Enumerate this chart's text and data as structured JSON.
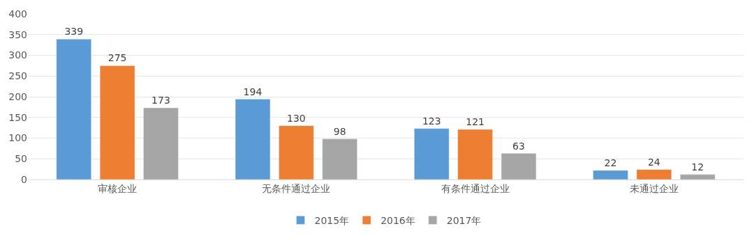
{
  "chart_data": {
    "type": "bar",
    "categories": [
      "审核企业",
      "无条件通过企业",
      "有条件通过企业",
      "未通过企业"
    ],
    "series": [
      {
        "name": "2015年",
        "color": "#5b9bd5",
        "values": [
          339,
          194,
          123,
          22
        ]
      },
      {
        "name": "2016年",
        "color": "#ed7d31",
        "values": [
          275,
          130,
          121,
          24
        ]
      },
      {
        "name": "2017年",
        "color": "#a5a5a5",
        "values": [
          173,
          98,
          63,
          12
        ]
      }
    ],
    "ylim": [
      0,
      400
    ],
    "yticks": [
      0,
      50,
      100,
      150,
      200,
      250,
      300,
      350,
      400
    ],
    "grid": "y",
    "legend": "bottom",
    "data_labels": true
  }
}
